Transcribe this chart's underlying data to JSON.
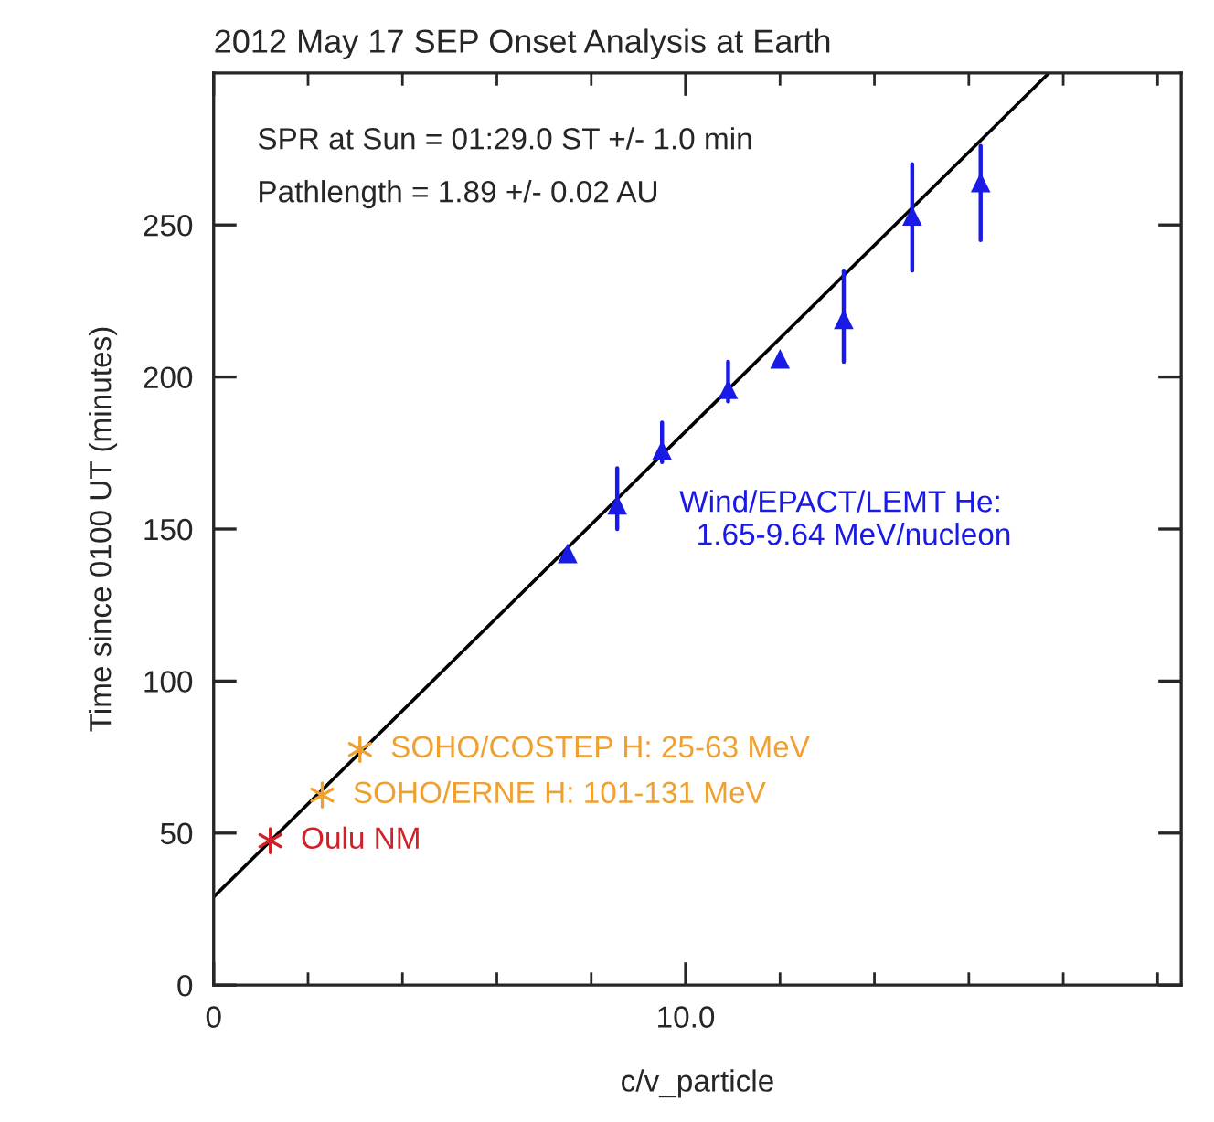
{
  "chart_data": {
    "type": "scatter",
    "title": "2012 May 17 SEP Onset Analysis at Earth",
    "xlabel": "c/v_particle",
    "ylabel": "Time since 0100 UT (minutes)",
    "annotations": [
      "SPR at Sun = 01:29.0 ST +/- 1.0 min",
      "Pathlength = 1.89 +/- 0.02 AU"
    ],
    "xlim": [
      0,
      20.5
    ],
    "ylim": [
      0,
      300
    ],
    "xticks": [
      0,
      {
        "value": 2,
        "label": null
      },
      {
        "value": 4,
        "label": null
      },
      {
        "value": 6,
        "label": null
      },
      {
        "value": 8,
        "label": null
      },
      {
        "value": 10,
        "label": "10.0"
      },
      {
        "value": 12,
        "label": null
      },
      {
        "value": 14,
        "label": null
      },
      {
        "value": 16,
        "label": null
      },
      {
        "value": 18,
        "label": null
      },
      {
        "value": 20,
        "label": null
      }
    ],
    "yticks": [
      0,
      50,
      100,
      150,
      200,
      250
    ],
    "grid": false,
    "legend": false,
    "series": [
      {
        "type": "line",
        "color": "#000000",
        "x": [
          0,
          17.7
        ],
        "values": [
          29,
          300
        ],
        "marker": "none",
        "line_style": "solid"
      },
      {
        "name": "Oulu NM",
        "color": "#d0202a",
        "x": [
          1.2
        ],
        "values": [
          47.5
        ],
        "marker": "cross"
      },
      {
        "name": "SOHO/ERNE H: 101-131 MeV",
        "color": "#f0a030",
        "x": [
          2.3
        ],
        "values": [
          62.5
        ],
        "marker": "cross"
      },
      {
        "name": "SOHO/COSTEP H: 25-63 MeV",
        "color": "#f0a030",
        "x": [
          3.1
        ],
        "values": [
          77.5
        ],
        "marker": "cross"
      },
      {
        "name": "Wind/EPACT/LEMT He:\n  1.65-9.64 MeV/nucleon",
        "color": "#1a1ae6",
        "marker": "triangle",
        "x": [
          7.5,
          8.55,
          9.5,
          10.9,
          12.0,
          13.35,
          14.8,
          16.25
        ],
        "values": [
          142,
          158,
          176,
          196,
          206,
          219,
          253,
          264
        ],
        "errors": [
          null,
          [
            150,
            170
          ],
          [
            172,
            185
          ],
          [
            192,
            205
          ],
          null,
          [
            205,
            235
          ],
          [
            235,
            270
          ],
          [
            245,
            276
          ]
        ]
      }
    ]
  }
}
